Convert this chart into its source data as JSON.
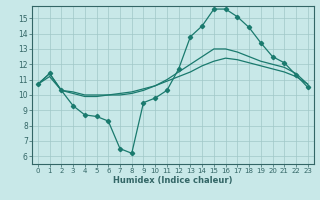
{
  "xlabel": "Humidex (Indice chaleur)",
  "bg_color": "#c8e8e8",
  "grid_color": "#a0c8c8",
  "line_color": "#1a7a6e",
  "spine_color": "#336666",
  "xlim": [
    -0.5,
    23.5
  ],
  "ylim": [
    5.5,
    15.8
  ],
  "xticks": [
    0,
    1,
    2,
    3,
    4,
    5,
    6,
    7,
    8,
    9,
    10,
    11,
    12,
    13,
    14,
    15,
    16,
    17,
    18,
    19,
    20,
    21,
    22,
    23
  ],
  "yticks": [
    6,
    7,
    8,
    9,
    10,
    11,
    12,
    13,
    14,
    15
  ],
  "line1_x": [
    0,
    1,
    2,
    3,
    4,
    5,
    6,
    7,
    8,
    9,
    10,
    11,
    12,
    13,
    14,
    15,
    16,
    17,
    18,
    19,
    20,
    21,
    22,
    23
  ],
  "line1_y": [
    10.7,
    11.4,
    10.3,
    9.3,
    8.7,
    8.6,
    8.3,
    6.5,
    6.2,
    9.5,
    9.8,
    10.3,
    11.7,
    13.8,
    14.5,
    15.6,
    15.6,
    15.1,
    14.4,
    13.4,
    12.5,
    12.1,
    11.3,
    10.5
  ],
  "line2_x": [
    0,
    1,
    2,
    3,
    4,
    5,
    6,
    7,
    8,
    9,
    10,
    11,
    12,
    13,
    14,
    15,
    16,
    17,
    18,
    19,
    20,
    21,
    22,
    23
  ],
  "line2_y": [
    10.7,
    11.4,
    10.3,
    10.2,
    10.0,
    10.0,
    10.0,
    10.0,
    10.1,
    10.3,
    10.6,
    11.0,
    11.5,
    12.0,
    12.5,
    13.0,
    13.0,
    12.8,
    12.5,
    12.2,
    12.0,
    11.8,
    11.4,
    10.7
  ],
  "line3_x": [
    0,
    1,
    2,
    3,
    4,
    5,
    6,
    7,
    8,
    9,
    10,
    11,
    12,
    13,
    14,
    15,
    16,
    17,
    18,
    19,
    20,
    21,
    22,
    23
  ],
  "line3_y": [
    10.7,
    11.2,
    10.3,
    10.1,
    9.9,
    9.9,
    10.0,
    10.1,
    10.2,
    10.4,
    10.6,
    10.9,
    11.2,
    11.5,
    11.9,
    12.2,
    12.4,
    12.3,
    12.1,
    11.9,
    11.7,
    11.5,
    11.2,
    10.7
  ],
  "xlabel_fontsize": 6.0,
  "tick_fontsize_x": 5.0,
  "tick_fontsize_y": 5.5
}
